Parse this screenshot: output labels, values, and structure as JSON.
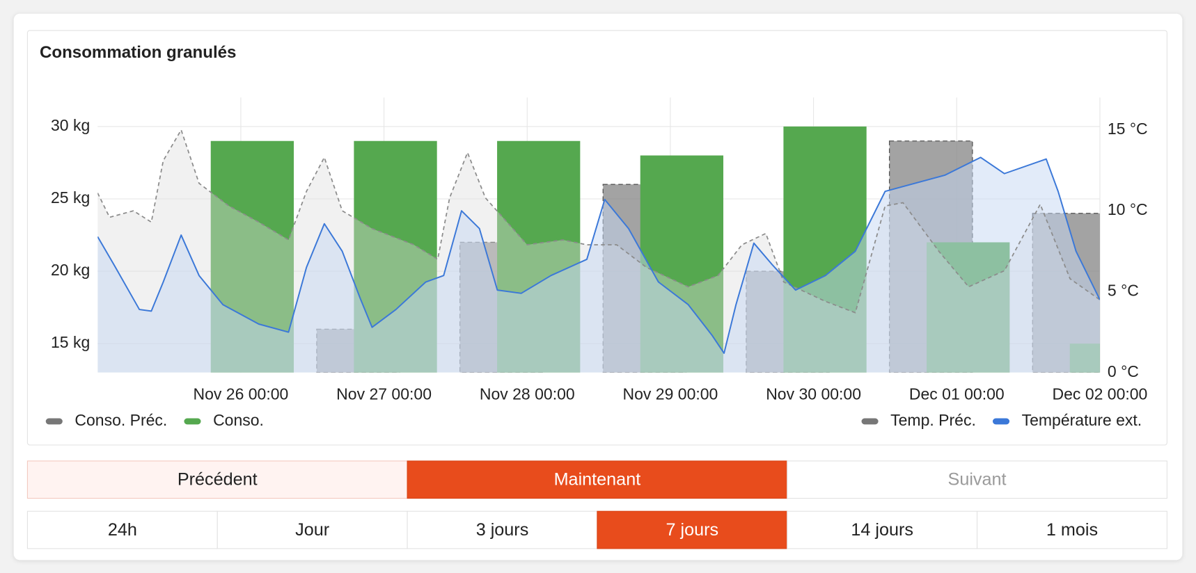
{
  "chart_data": {
    "type": "bar-line",
    "title": "Consommation granulés",
    "xlim": [
      "Nov 25 00:00",
      "Dec 02 00:00"
    ],
    "xticks": [
      "Nov 26 00:00",
      "Nov 27 00:00",
      "Nov 28 00:00",
      "Nov 29 00:00",
      "Nov 30 00:00",
      "Dec 01 00:00",
      "Dec 02 00:00"
    ],
    "ylim": [
      13,
      32
    ],
    "yticks": [
      {
        "value": 15,
        "label": "15 kg"
      },
      {
        "value": 20,
        "label": "20 kg"
      },
      {
        "value": 25,
        "label": "25 kg"
      },
      {
        "value": 30,
        "label": "30 kg"
      }
    ],
    "y2lim": [
      0,
      17
    ],
    "y2ticks": [
      {
        "value": 0,
        "label": "0 °C"
      },
      {
        "value": 5,
        "label": "5 °C"
      },
      {
        "value": 10,
        "label": "10 °C"
      },
      {
        "value": 15,
        "label": "15 °C"
      }
    ],
    "grid": true,
    "bar_x": [
      "Nov 26 00:00",
      "Nov 27 00:00",
      "Nov 28 00:00",
      "Nov 29 00:00",
      "Nov 30 00:00",
      "Dec 01 00:00",
      "Dec 02 00:00"
    ],
    "series": [
      {
        "name": "Conso. Préc.",
        "type": "bar",
        "color": "#8c8c8c",
        "style": "dashed",
        "values": [
          null,
          16,
          22,
          26,
          20,
          29,
          24
        ]
      },
      {
        "name": "Conso.",
        "type": "bar",
        "color": "#55a84f",
        "values": [
          29,
          29,
          29,
          28,
          30,
          22,
          15
        ]
      },
      {
        "name": "Temp. Préc.",
        "type": "line",
        "axis": "y2",
        "color": "#8c8c8c",
        "style": "dashed",
        "x": [
          "Nov 25 00:00",
          "Nov 25 02:00",
          "Nov 25 06:00",
          "Nov 25 09:00",
          "Nov 25 11:00",
          "Nov 25 14:00",
          "Nov 25 17:00",
          "Nov 25 22:00",
          "Nov 26 03:00",
          "Nov 26 08:00",
          "Nov 26 11:00",
          "Nov 26 14:00",
          "Nov 26 17:00",
          "Nov 26 22:00",
          "Nov 27 05:00",
          "Nov 27 09:00",
          "Nov 27 11:00",
          "Nov 27 14:00",
          "Nov 27 17:00",
          "Nov 28 00:00",
          "Nov 28 06:00",
          "Nov 28 10:00",
          "Nov 28 15:00",
          "Nov 28 20:00",
          "Nov 29 03:00",
          "Nov 29 08:00",
          "Nov 29 12:00",
          "Nov 29 16:00",
          "Nov 29 19:00",
          "Nov 30 02:00",
          "Nov 30 07:00",
          "Nov 30 12:00",
          "Nov 30 15:00",
          "Nov 30 21:00",
          "Dec 01 02:00",
          "Dec 01 08:00",
          "Dec 01 14:00",
          "Dec 01 19:00",
          "Dec 02 00:00"
        ],
        "values": [
          11.1,
          9.6,
          10.0,
          9.3,
          13.1,
          15.0,
          11.7,
          10.3,
          9.3,
          8.2,
          11.2,
          13.3,
          10.0,
          8.9,
          7.9,
          7.0,
          10.8,
          13.6,
          10.8,
          7.9,
          8.2,
          7.9,
          7.9,
          6.5,
          5.3,
          6.0,
          7.9,
          8.6,
          5.6,
          4.4,
          3.7,
          10.3,
          10.5,
          7.5,
          5.3,
          6.3,
          10.4,
          5.8,
          4.5
        ]
      },
      {
        "name": "Température ext.",
        "type": "line",
        "axis": "y2",
        "color": "#3b78d8",
        "x": [
          "Nov 25 00:00",
          "Nov 25 03:00",
          "Nov 25 07:00",
          "Nov 25 09:00",
          "Nov 25 11:00",
          "Nov 25 14:00",
          "Nov 25 17:00",
          "Nov 25 21:00",
          "Nov 26 03:00",
          "Nov 26 08:00",
          "Nov 26 11:00",
          "Nov 26 14:00",
          "Nov 26 17:00",
          "Nov 26 20:00",
          "Nov 26 22:00",
          "Nov 27 02:00",
          "Nov 27 07:00",
          "Nov 27 10:00",
          "Nov 27 13:00",
          "Nov 27 16:00",
          "Nov 27 19:00",
          "Nov 27 23:00",
          "Nov 28 04:00",
          "Nov 28 10:00",
          "Nov 28 13:00",
          "Nov 28 17:00",
          "Nov 28 22:00",
          "Nov 29 03:00",
          "Nov 29 07:00",
          "Nov 29 09:00",
          "Nov 29 11:00",
          "Nov 29 14:00",
          "Nov 29 17:00",
          "Nov 29 21:00",
          "Nov 30 02:00",
          "Nov 30 07:00",
          "Nov 30 12:00",
          "Nov 30 17:00",
          "Nov 30 22:00",
          "Dec 01 04:00",
          "Dec 01 08:00",
          "Dec 01 15:00",
          "Dec 01 17:00",
          "Dec 01 20:00",
          "Dec 02 00:00"
        ],
        "values": [
          8.4,
          6.5,
          3.9,
          3.8,
          5.6,
          8.5,
          6.0,
          4.2,
          3.0,
          2.5,
          6.5,
          9.2,
          7.5,
          4.6,
          2.8,
          3.9,
          5.6,
          6.0,
          10.0,
          8.9,
          5.1,
          4.9,
          6.0,
          7.0,
          10.7,
          8.9,
          5.6,
          4.2,
          2.3,
          1.2,
          4.2,
          8.0,
          6.7,
          5.1,
          6.0,
          7.5,
          11.2,
          11.7,
          12.2,
          13.3,
          12.3,
          13.2,
          11.2,
          7.5,
          4.5
        ]
      }
    ]
  },
  "controls": {
    "navigation": [
      "Précédent",
      "Maintenant",
      "Suivant"
    ],
    "active_navigation": 1,
    "disabled_navigation": 2,
    "ranges": [
      "24h",
      "Jour",
      "3 jours",
      "7 jours",
      "14 jours",
      "1 mois"
    ],
    "active_range": 3
  }
}
